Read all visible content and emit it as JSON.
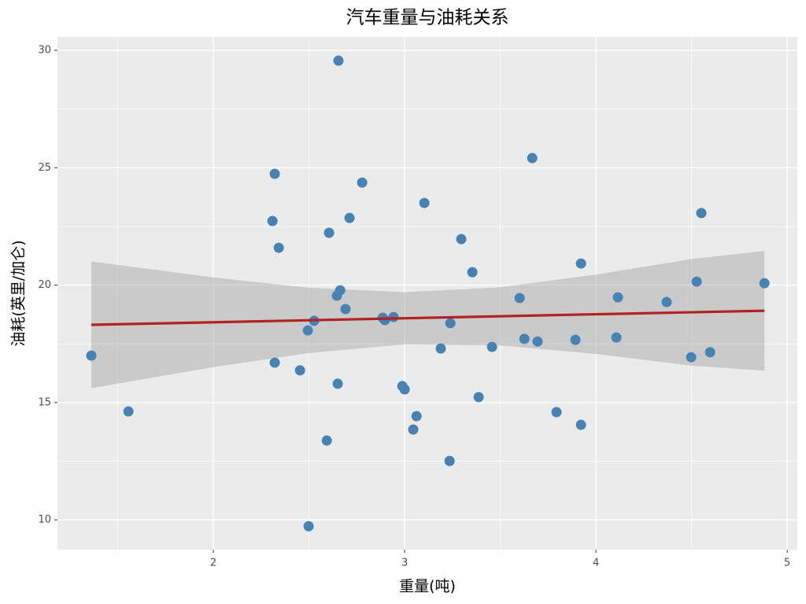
{
  "chart_data": {
    "type": "scatter",
    "title": "汽车重量与油耗关系",
    "xlabel": "重量(吨)",
    "ylabel": "油耗(英里/加仑)",
    "x": [
      1.362,
      1.556,
      2.654,
      2.321,
      2.309,
      2.342,
      2.778,
      2.712,
      2.605,
      2.663,
      2.646,
      2.691,
      2.527,
      2.494,
      2.321,
      2.453,
      2.65,
      2.593,
      2.498,
      2.885,
      2.897,
      2.942,
      2.988,
      3.0,
      3.062,
      3.045,
      3.103,
      3.296,
      3.354,
      3.239,
      3.189,
      3.457,
      3.387,
      3.235,
      3.667,
      3.601,
      3.626,
      3.695,
      3.922,
      3.893,
      3.794,
      3.922,
      4.115,
      4.107,
      4.37,
      4.551,
      4.527,
      4.498,
      4.597,
      4.881
    ],
    "values": [
      17.0,
      14.62,
      29.56,
      24.74,
      22.73,
      21.59,
      24.37,
      22.86,
      22.23,
      19.78,
      19.55,
      18.98,
      18.48,
      18.07,
      16.7,
      16.37,
      15.8,
      13.38,
      9.73,
      18.61,
      18.51,
      18.64,
      15.7,
      15.56,
      14.42,
      13.85,
      23.5,
      21.96,
      20.55,
      18.38,
      17.3,
      17.37,
      15.23,
      12.51,
      25.41,
      19.45,
      17.71,
      17.6,
      20.92,
      17.67,
      14.59,
      14.05,
      19.48,
      17.77,
      19.28,
      23.07,
      20.15,
      16.93,
      17.14,
      20.08
    ],
    "color": "#4682b4",
    "fit": {
      "x": [
        1.362,
        4.881
      ],
      "y": [
        18.31,
        18.91
      ],
      "color": "#b22222"
    },
    "band": {
      "x": [
        1.362,
        2,
        2.5,
        3,
        3.5,
        4,
        4.5,
        4.881
      ],
      "lower": [
        15.61,
        16.51,
        17.11,
        17.48,
        17.43,
        17.07,
        16.57,
        16.36
      ],
      "upper": [
        21.01,
        20.33,
        19.89,
        19.7,
        19.91,
        20.45,
        21.11,
        21.46
      ]
    },
    "xlim": [
      1.185,
      5.053
    ],
    "ylim": [
      8.73,
      30.57
    ],
    "xticks": [
      2,
      3,
      4,
      5
    ],
    "yticks": [
      10,
      15,
      20,
      25,
      30
    ],
    "xminor": [
      1.5,
      2.5,
      3.5,
      4.5
    ],
    "yminor": [
      12.5,
      17.5,
      22.5,
      27.5
    ],
    "grid": true
  }
}
